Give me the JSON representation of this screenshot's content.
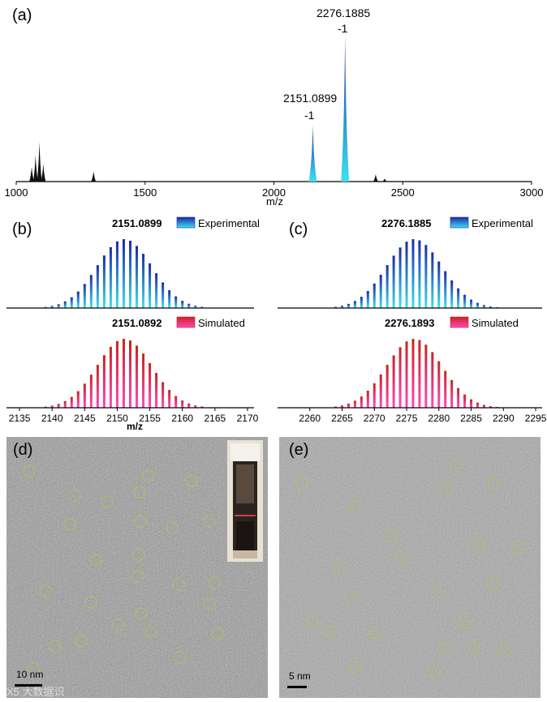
{
  "panels": {
    "a": {
      "label": "(a)"
    },
    "b": {
      "label": "(b)"
    },
    "c": {
      "label": "(c)"
    },
    "d": {
      "label": "(d)",
      "scalebar": "10 nm"
    },
    "e": {
      "label": "(e)",
      "scalebar": "5 nm"
    }
  },
  "watermark": "X5 大数据识",
  "colors": {
    "experimental_dark": "#1a2aa8",
    "experimental_light": "#3ee0f0",
    "simulated_dark": "#c8241c",
    "simulated_light": "#ff48c0",
    "minor": "#111111"
  },
  "chart_data": [
    {
      "id": "a",
      "type": "line",
      "title": "",
      "xlabel": "m/z",
      "xlim": [
        1000,
        3000
      ],
      "xticks": [
        1000,
        1500,
        2000,
        2500,
        3000
      ],
      "peaks": [
        {
          "mz": 1060,
          "rel": 0.1,
          "kind": "minor"
        },
        {
          "mz": 1075,
          "rel": 0.18,
          "kind": "minor"
        },
        {
          "mz": 1090,
          "rel": 0.27,
          "kind": "minor"
        },
        {
          "mz": 1105,
          "rel": 0.12,
          "kind": "minor"
        },
        {
          "mz": 1300,
          "rel": 0.07,
          "kind": "minor"
        },
        {
          "mz": 2151.0899,
          "rel": 0.38,
          "kind": "main",
          "label": "2151.0899",
          "charge": "-1"
        },
        {
          "mz": 2276.1885,
          "rel": 1.0,
          "kind": "main",
          "label": "2276.1885",
          "charge": "-1"
        },
        {
          "mz": 2395,
          "rel": 0.05,
          "kind": "minor"
        },
        {
          "mz": 2430,
          "rel": 0.02,
          "kind": "minor"
        }
      ]
    },
    {
      "id": "b",
      "type": "bar",
      "xlabel": "m/z",
      "xlim": [
        2133,
        2171
      ],
      "xticks": [
        2135,
        2140,
        2145,
        2150,
        2155,
        2160,
        2165,
        2170
      ],
      "series": [
        {
          "name": "Experimental",
          "value_label": "2151.0899",
          "center": 2151.0899,
          "sigma": 4.2,
          "start": 2137,
          "end": 2165
        },
        {
          "name": "Simulated",
          "value_label": "2151.0892",
          "center": 2151.0892,
          "sigma": 4.2,
          "start": 2137,
          "end": 2166
        }
      ]
    },
    {
      "id": "c",
      "type": "bar",
      "xlabel": "",
      "xlim": [
        2255,
        2296
      ],
      "xticks": [
        2260,
        2265,
        2270,
        2275,
        2280,
        2285,
        2290,
        2295
      ],
      "series": [
        {
          "name": "Experimental",
          "value_label": "2276.1885",
          "center": 2276.1885,
          "sigma": 4.3,
          "start": 2262,
          "end": 2290
        },
        {
          "name": "Simulated",
          "value_label": "2276.1893",
          "center": 2276.1893,
          "sigma": 4.3,
          "start": 2261,
          "end": 2291
        }
      ]
    }
  ]
}
